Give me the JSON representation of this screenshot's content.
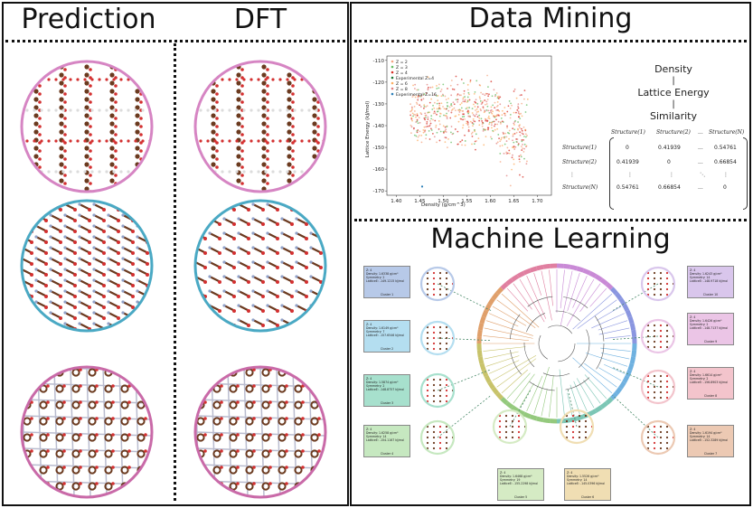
{
  "titles": {
    "prediction": "Prediction",
    "dft": "DFT",
    "data_mining": "Data Mining",
    "machine_learning": "Machine Learning"
  },
  "colors": {
    "pink": "#d685c3",
    "blue": "#4aa9c4",
    "dark_pink": "#c96aa8",
    "atom_c": "#6b3a1f",
    "atom_o": "#d33030",
    "atom_n": "#8fa0c8",
    "atom_h": "#dcdcdc"
  },
  "chart_data": {
    "type": "scatter",
    "xlabel": "Density (g/cm^3)",
    "ylabel": "Lattice Energy (kJ/mol)",
    "xlim": [
      1.38,
      1.73
    ],
    "ylim": [
      -172,
      -108
    ],
    "xticks": [
      "1.40",
      "1.45",
      "1.50",
      "1.55",
      "1.60",
      "1.65",
      "1.70"
    ],
    "yticks": [
      "-110",
      "-120",
      "-130",
      "-140",
      "-150",
      "-160",
      "-170"
    ],
    "legend_placement": "top-left",
    "series": [
      {
        "name": "Z = 2",
        "color": "#f4a582"
      },
      {
        "name": "Z = 3",
        "color": "#66bd63"
      },
      {
        "name": "Z = 4",
        "color": "#d73027"
      },
      {
        "name": "Experimental Z=4",
        "color": "#1b7837"
      },
      {
        "name": "Z = 6",
        "color": "#fdae61"
      },
      {
        "name": "Z = 8",
        "color": "#e08080"
      },
      {
        "name": "Experimental Z=16",
        "color": "#2c7fb8"
      }
    ]
  },
  "metrics": {
    "density": "Density",
    "lattice_energy": "Lattice Energy",
    "similarity": "Similarity",
    "sep": "|"
  },
  "matrix": {
    "col_headers": [
      "Structure(1)",
      "Structure(2)",
      "...",
      "Structure(N)"
    ],
    "rows": [
      {
        "label": "Structure(1)",
        "cells": [
          "0",
          "0.41939",
          "...",
          "0.54761"
        ]
      },
      {
        "label": "Structure(2)",
        "cells": [
          "0.41939",
          "0",
          "...",
          "0.66854"
        ]
      },
      {
        "label": "⋮",
        "cells": [
          "⋮",
          "⋮",
          "⋱",
          "⋮"
        ]
      },
      {
        "label": "Structure(N)",
        "cells": [
          "0.54761",
          "0.66854",
          "...",
          "0"
        ]
      }
    ]
  },
  "clusters": [
    {
      "z": "Z: 4",
      "density": "Density: 1.6338 g/cm³",
      "symmetry": "Symmetry: 2",
      "lattice": "LatticeE: -149.1215 kJ/mol",
      "label": "Cluster 1",
      "color": "#b7c9e8"
    },
    {
      "z": "Z: 4",
      "density": "Density: 1.6149 g/cm³",
      "symmetry": "Symmetry: 7",
      "lattice": "LatticeE: -157.6546 kJ/mol",
      "label": "Cluster 2",
      "color": "#b4def0"
    },
    {
      "z": "Z: 4",
      "density": "Density: 1.5874 g/cm³",
      "symmetry": "Symmetry: 2",
      "lattice": "LatticeE: -148.8757 kJ/mol",
      "label": "Cluster 3",
      "color": "#a7e0cd"
    },
    {
      "z": "Z: 4",
      "density": "Density: 1.6258 g/cm³",
      "symmetry": "Symmetry: 14",
      "lattice": "LatticeE: -154.1167 kJ/mol",
      "label": "Cluster 4",
      "color": "#c6e8c0"
    },
    {
      "z": "Z: 4",
      "density": "Density: 1.6468 g/cm³",
      "symmetry": "Symmetry: 19",
      "lattice": "LatticeE: -155.2298 kJ/mol",
      "label": "Cluster 5",
      "color": "#d5ebc4"
    },
    {
      "z": "Z: 4",
      "density": "Density: 1.5526 g/cm³",
      "symmetry": "Symmetry: 14",
      "lattice": "LatticeE: -145.0396 kJ/mol",
      "label": "Cluster 6",
      "color": "#f0deb3"
    },
    {
      "z": "Z: 4",
      "density": "Density: 1.6194 g/cm³",
      "symmetry": "Symmetry: 14",
      "lattice": "LatticeE: -152.3289 kJ/mol",
      "label": "Cluster 7",
      "color": "#ecc9b3"
    },
    {
      "z": "Z: 4",
      "density": "Density: 1.6614 g/cm³",
      "symmetry": "Symmetry: 2",
      "lattice": "LatticeE: -156.8903 kJ/mol",
      "label": "Cluster 8",
      "color": "#f3c4cc"
    },
    {
      "z": "Z: 4",
      "density": "Density: 1.6426 g/cm³",
      "symmetry": "Symmetry: 2",
      "lattice": "LatticeE: -148.7137 kJ/mol",
      "label": "Cluster 9",
      "color": "#ebc5e6"
    },
    {
      "z": "Z: 4",
      "density": "Density: 1.6243 g/cm³",
      "symmetry": "Symmetry: 14",
      "lattice": "LatticeE: -148.9718 kJ/mol",
      "label": "Cluster 10",
      "color": "#d9c6ec"
    }
  ]
}
